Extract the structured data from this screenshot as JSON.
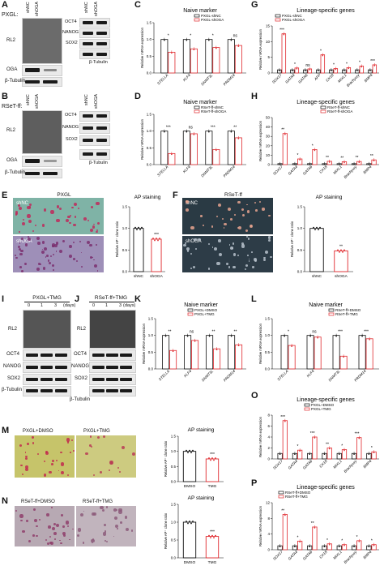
{
  "panels": {
    "A": {
      "letter": "A",
      "condition": "PXGL:",
      "left_cols": [
        "shNC",
        "shOGA"
      ],
      "right_cols": [
        "shNC",
        "shOGA"
      ],
      "left_rows": [
        "RL2",
        "OGA",
        "β-Tubulin"
      ],
      "right_rows": [
        "OCT4",
        "NANOG",
        "SOX2",
        "β-Tubulin"
      ]
    },
    "B": {
      "letter": "B",
      "condition": "RSeT-ff:",
      "left_cols": [
        "shNC",
        "shOGA"
      ],
      "right_cols": [
        "shNC",
        "shOGA"
      ],
      "left_rows": [
        "RL2",
        "OGA",
        "β-Tubulin"
      ],
      "right_rows": [
        "OCT4",
        "NANOG",
        "SOX2",
        "β-Tubulin"
      ]
    },
    "E": {
      "letter": "E",
      "image_title": "PXGL",
      "rows": [
        "shNC",
        "shOGA"
      ],
      "chart_title": "AP staining",
      "xcats": [
        "shNC",
        "shOGA"
      ]
    },
    "F": {
      "letter": "F",
      "image_title": "RSeT-ff",
      "rows": [
        "shNC",
        "shOGA"
      ],
      "chart_title": "AP staining",
      "xcats": [
        "shNC",
        "shOGA"
      ]
    },
    "I": {
      "letter": "I",
      "title": "PXGL+TMG",
      "timepoints": [
        "0",
        "1",
        "3"
      ],
      "unit": "(days)",
      "rows": [
        "RL2",
        "OCT4",
        "NANOG",
        "SOX2",
        "β-Tubulin"
      ]
    },
    "J": {
      "letter": "J",
      "title": "RSeT-ff+TMG",
      "timepoints": [
        "0",
        "1",
        "3"
      ],
      "unit": "(days)",
      "rows": [
        "RL2",
        "OCT4",
        "NANOG",
        "SOX2",
        "β-Tubulin"
      ]
    },
    "M": {
      "letter": "M",
      "labels": [
        "PXGL+DMSO",
        "PXGL+TMG"
      ],
      "chart_title": "AP staining",
      "xcats": [
        "DMSO",
        "TMG"
      ]
    },
    "N": {
      "letter": "N",
      "labels": [
        "RSeT-ff+DMSO",
        "RSeT-ff+TMG"
      ],
      "chart_title": "AP staining",
      "xcats": [
        "DMSO",
        "TMG"
      ]
    }
  },
  "axis_labels": {
    "mrna": "Relative mRNA expression",
    "ap": "Relative AP⁺ clone ratio"
  },
  "colors": {
    "black": "#111111",
    "red": "#e0282d"
  },
  "chart_data": [
    {
      "id": "C",
      "type": "bar",
      "title": "Naive marker",
      "categories": [
        "STELLA",
        "KLF4",
        "DNMT3L",
        "PRDM14"
      ],
      "series": [
        {
          "name": "PXGL-shNC",
          "values": [
            1.0,
            1.0,
            1.0,
            1.0
          ]
        },
        {
          "name": "PXGL-shOGA",
          "values": [
            0.62,
            0.72,
            0.76,
            0.82
          ]
        }
      ],
      "ylim": [
        0,
        1.5
      ],
      "yticks": [
        "0.0",
        "0.5",
        "1.0",
        "1.5"
      ],
      "sig": [
        "*",
        "*",
        "*",
        "ns"
      ]
    },
    {
      "id": "D",
      "type": "bar",
      "title": "Naive marker",
      "categories": [
        "STELLA",
        "KLF4",
        "DNMT3L",
        "PRDM14"
      ],
      "series": [
        {
          "name": "RSeT-ff-shNC",
          "values": [
            1.0,
            1.0,
            1.0,
            1.0
          ]
        },
        {
          "name": "RSeT-ff-shOGA",
          "values": [
            0.33,
            0.92,
            0.45,
            0.8
          ]
        }
      ],
      "ylim": [
        0,
        1.5
      ],
      "yticks": [
        "0.0",
        "0.5",
        "1.0",
        "1.5"
      ],
      "sig": [
        "***",
        "ns",
        "***",
        "**"
      ]
    },
    {
      "id": "G",
      "type": "bar",
      "title": "Lineage-specific genes",
      "categories": [
        "SOX17",
        "GATA4",
        "GATA6",
        "AFP",
        "CK18",
        "MIXL1",
        "Brachyury",
        "BMP4"
      ],
      "series": [
        {
          "name": "PXGL-shNC",
          "values": [
            1,
            1,
            1,
            1,
            1,
            1,
            1,
            1
          ]
        },
        {
          "name": "PXGL-shOGA",
          "values": [
            12.5,
            1.6,
            1.3,
            5.8,
            1.4,
            1.7,
            2.2,
            2.6
          ]
        }
      ],
      "ylim": [
        0,
        15
      ],
      "yticks": [
        "0",
        "5",
        "10",
        "15"
      ],
      "sig": [
        "***",
        "*",
        "ns",
        "*",
        "*",
        "*",
        "*",
        "***"
      ]
    },
    {
      "id": "H",
      "type": "bar",
      "title": "Lineage-specific genes",
      "categories": [
        "SOX17",
        "GATA4",
        "GATA6",
        "CK18",
        "MIXL1",
        "Brachyury",
        "BMP4"
      ],
      "series": [
        {
          "name": "RSeT-ff-shNC",
          "values": [
            1,
            1,
            1,
            1,
            1,
            1,
            1
          ]
        },
        {
          "name": "RSeT-ff-shOGA",
          "values": [
            33,
            6,
            16,
            3.5,
            3,
            3.3,
            5
          ]
        }
      ],
      "ylim": [
        0,
        50
      ],
      "yticks": [
        "0",
        "10",
        "20",
        "30",
        "40",
        "50"
      ],
      "sig": [
        "**",
        "*",
        "*",
        "**",
        "**",
        "**",
        "**"
      ]
    },
    {
      "id": "E",
      "type": "bar",
      "title": "AP staining",
      "categories": [
        "shNC",
        "shOGA"
      ],
      "series": [
        {
          "name": "",
          "values": [
            1.0,
            0.75
          ]
        }
      ],
      "ylim": [
        0,
        1.5
      ],
      "yticks": [
        "0.0",
        "0.5",
        "1.0",
        "1.5"
      ],
      "sig": [
        "",
        "***"
      ]
    },
    {
      "id": "F",
      "type": "bar",
      "title": "AP staining",
      "categories": [
        "shNC",
        "shOGA"
      ],
      "series": [
        {
          "name": "",
          "values": [
            1.0,
            0.48
          ]
        }
      ],
      "ylim": [
        0,
        1.5
      ],
      "yticks": [
        "0.0",
        "0.5",
        "1.0",
        "1.5"
      ],
      "sig": [
        "",
        "**"
      ]
    },
    {
      "id": "K",
      "type": "bar",
      "title": "Naive marker",
      "categories": [
        "STELLA",
        "KLF4",
        "DNMT3L",
        "PRDM14"
      ],
      "series": [
        {
          "name": "PXGL+DMSO",
          "values": [
            1,
            1,
            1,
            1
          ]
        },
        {
          "name": "PXGL+TMG",
          "values": [
            0.55,
            0.85,
            0.6,
            0.72
          ]
        }
      ],
      "ylim": [
        0,
        1.5
      ],
      "yticks": [
        "0.0",
        "0.5",
        "1.0",
        "1.5"
      ],
      "sig": [
        "**",
        "ns",
        "**",
        "**"
      ]
    },
    {
      "id": "L",
      "type": "bar",
      "title": "Naive marker",
      "categories": [
        "STELLA",
        "KLF4",
        "DNMT3L",
        "PRDM14"
      ],
      "series": [
        {
          "name": "RSeT-ff+DMSO",
          "values": [
            1,
            1,
            1,
            1
          ]
        },
        {
          "name": "RSeT-ff+TMG",
          "values": [
            0.7,
            0.95,
            0.38,
            0.9
          ]
        }
      ],
      "ylim": [
        0,
        1.5
      ],
      "yticks": [
        "0.0",
        "0.5",
        "1.0",
        "1.5"
      ],
      "sig": [
        "*",
        "ns",
        "***",
        "***"
      ]
    },
    {
      "id": "M",
      "type": "bar",
      "title": "AP staining",
      "categories": [
        "DMSO",
        "TMG"
      ],
      "series": [
        {
          "name": "",
          "values": [
            1.0,
            0.75
          ]
        }
      ],
      "ylim": [
        0,
        1.5
      ],
      "yticks": [
        "0.0",
        "0.5",
        "1.0",
        "1.5"
      ],
      "sig": [
        "",
        "***"
      ]
    },
    {
      "id": "N",
      "type": "bar",
      "title": "AP staining",
      "categories": [
        "DMSO",
        "TMG"
      ],
      "series": [
        {
          "name": "",
          "values": [
            1.0,
            0.6
          ]
        }
      ],
      "ylim": [
        0,
        1.5
      ],
      "yticks": [
        "0.0",
        "0.5",
        "1.0",
        "1.5"
      ],
      "sig": [
        "",
        "***"
      ]
    },
    {
      "id": "O",
      "type": "bar",
      "title": "Lineage-specific genes",
      "categories": [
        "SOX17",
        "GATA4",
        "GATA6",
        "CK18",
        "MIXL1",
        "Brachyury",
        "BMP4"
      ],
      "series": [
        {
          "name": "PXGL+DMSO",
          "values": [
            1,
            1,
            1,
            1,
            1,
            1,
            1
          ]
        },
        {
          "name": "PXGL+TMG",
          "values": [
            7,
            1.6,
            4,
            2,
            1.7,
            3.9,
            1.3
          ]
        }
      ],
      "ylim": [
        0,
        8
      ],
      "yticks": [
        "0",
        "2",
        "4",
        "6",
        "8"
      ],
      "sig": [
        "***",
        "*",
        "***",
        "**",
        "*",
        "***",
        "*"
      ]
    },
    {
      "id": "P",
      "type": "bar",
      "title": "Lineage-specific genes",
      "categories": [
        "SOX17",
        "GATA4",
        "GATA6",
        "CK18",
        "MIXL1",
        "Brachyury",
        "BMP4"
      ],
      "series": [
        {
          "name": "RSeT-ff+DMSO",
          "values": [
            1,
            1,
            1,
            1,
            1,
            1,
            1
          ]
        },
        {
          "name": "RSeT-ff+TMG",
          "values": [
            9,
            2.2,
            5.8,
            1.5,
            1.3,
            2.3,
            1.3
          ]
        }
      ],
      "ylim": [
        0,
        12
      ],
      "yticks": [
        "0",
        "4",
        "8",
        "12"
      ],
      "sig": [
        "**",
        "*",
        "**",
        "*",
        "*",
        "*",
        "*"
      ]
    }
  ]
}
